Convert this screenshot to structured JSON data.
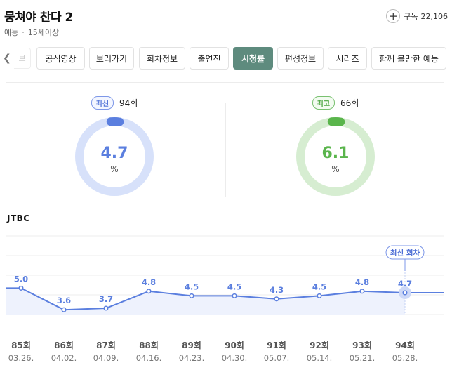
{
  "header": {
    "title": "뭉쳐야 찬다 2",
    "genre": "예능",
    "age_rating": "15세이상",
    "subscribe_label": "구독",
    "subscribe_count": "22,106"
  },
  "tabs": {
    "partial_label": "보",
    "items": [
      {
        "label": "공식영상",
        "active": false
      },
      {
        "label": "보러가기",
        "active": false
      },
      {
        "label": "회차정보",
        "active": false
      },
      {
        "label": "출연진",
        "active": false
      },
      {
        "label": "시청률",
        "active": true
      },
      {
        "label": "편성정보",
        "active": false
      },
      {
        "label": "시리즈",
        "active": false
      },
      {
        "label": "함께 볼만한 예능",
        "active": false
      }
    ]
  },
  "ratings": {
    "latest": {
      "badge": "최신",
      "episode": "94회",
      "value": "4.7",
      "unit": "%",
      "color": "#5b7fdf",
      "track": "#d7e1fa"
    },
    "best": {
      "badge": "최고",
      "episode": "66회",
      "value": "6.1",
      "unit": "%",
      "color": "#5ab54c",
      "track": "#d6edd1"
    }
  },
  "channel": "JTBC",
  "chart_data": {
    "type": "line",
    "categories": [
      "85회",
      "86회",
      "87회",
      "88회",
      "89회",
      "90회",
      "91회",
      "92회",
      "93회",
      "94회"
    ],
    "dates": [
      "03.26.",
      "04.02.",
      "04.09.",
      "04.16.",
      "04.23.",
      "04.30.",
      "05.07.",
      "05.14.",
      "05.21.",
      "05.28."
    ],
    "values": [
      5.0,
      3.6,
      3.7,
      4.8,
      4.5,
      4.5,
      4.3,
      4.5,
      4.8,
      4.7
    ],
    "value_labels": [
      "5.0",
      "3.6",
      "3.7",
      "4.8",
      "4.5",
      "4.5",
      "4.3",
      "4.5",
      "4.8",
      "4.7"
    ],
    "highlight_label": "최신 회차",
    "line_color": "#5b7fdf",
    "fill_color": "#eef2fd",
    "grid": true
  }
}
